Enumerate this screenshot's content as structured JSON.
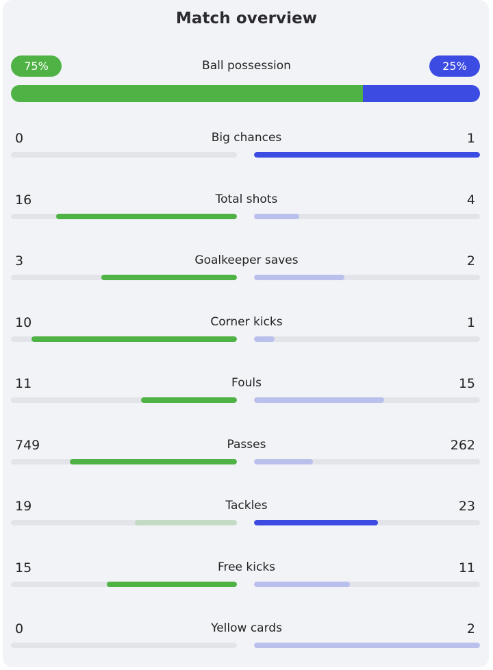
{
  "title": "Match overview",
  "colors": {
    "home": "#4fb244",
    "home_muted": "#c3dbc4",
    "away": "#3c4be2",
    "away_muted": "#bac0ec",
    "track": "#e3e4e9"
  },
  "possession": {
    "label": "Ball possession",
    "home": "75%",
    "away": "25%",
    "home_value": 75,
    "away_value": 25
  },
  "stats": [
    {
      "label": "Big chances",
      "home": "0",
      "away": "1"
    },
    {
      "label": "Total shots",
      "home": "16",
      "away": "4"
    },
    {
      "label": "Goalkeeper saves",
      "home": "3",
      "away": "2"
    },
    {
      "label": "Corner kicks",
      "home": "10",
      "away": "1"
    },
    {
      "label": "Fouls",
      "home": "11",
      "away": "15"
    },
    {
      "label": "Passes",
      "home": "749",
      "away": "262"
    },
    {
      "label": "Tackles",
      "home": "19",
      "away": "23"
    },
    {
      "label": "Free kicks",
      "home": "15",
      "away": "11"
    },
    {
      "label": "Yellow cards",
      "home": "0",
      "away": "2"
    }
  ]
}
